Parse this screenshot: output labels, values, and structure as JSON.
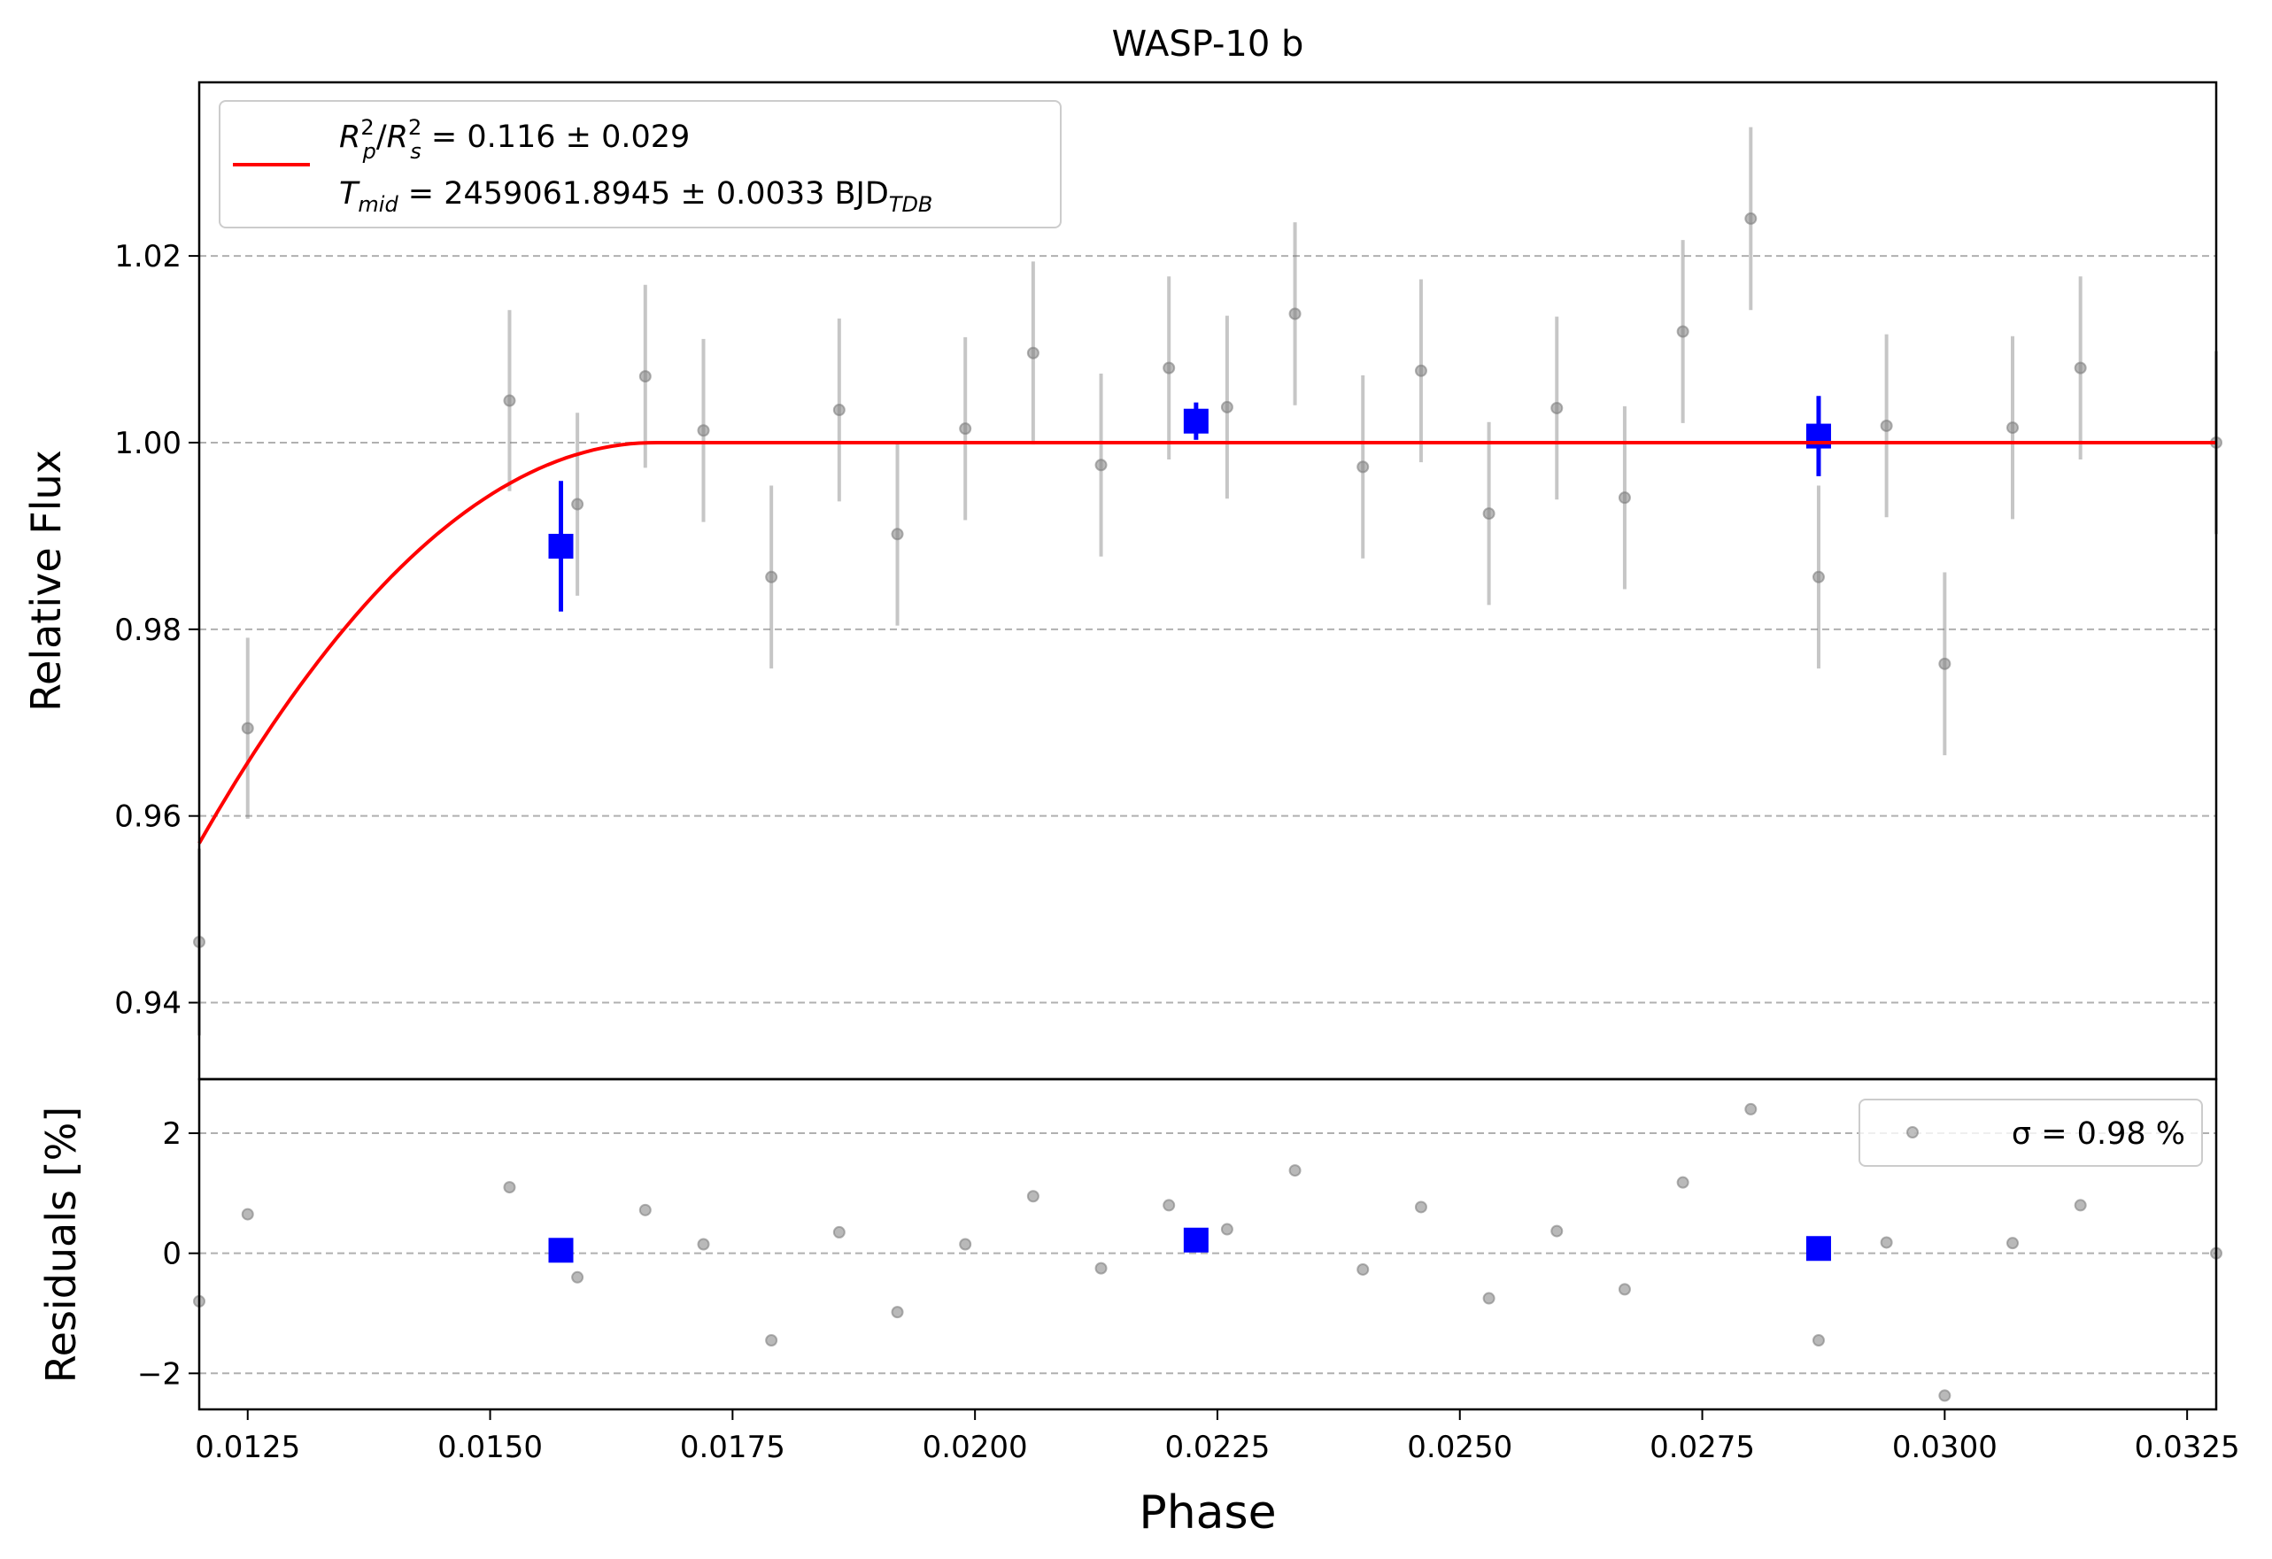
{
  "chart_data": [
    {
      "type": "scatter",
      "title": "WASP-10 b",
      "xlabel": "",
      "ylabel": "Relative Flux",
      "xlim": [
        0.012,
        0.0328
      ],
      "ylim": [
        0.9318,
        1.0386
      ],
      "yticks": [
        0.94,
        0.96,
        0.98,
        1.0,
        1.02
      ],
      "ytick_labels": [
        "0.94",
        "0.96",
        "0.98",
        "1.00",
        "1.02"
      ],
      "grid": "y-dashed",
      "legend": {
        "placement": "top-left",
        "line1": "R_p^2/R_s^2 = 0.116 ± 0.029",
        "line2": "T_mid = 2459061.8945 ± 0.0033 BJD_TDB"
      },
      "model_color": "#ff0000",
      "model": {
        "ingress_start": 0.0105,
        "ingress_end": 0.0167,
        "depth": 0.0747,
        "baseline": 1.0
      },
      "data_color": "#808080",
      "data": {
        "x": [
          0.012,
          0.0125,
          0.0152,
          0.0159,
          0.0166,
          0.0172,
          0.0179,
          0.0186,
          0.0192,
          0.0199,
          0.0206,
          0.0213,
          0.022,
          0.0226,
          0.0233,
          0.024,
          0.0246,
          0.0253,
          0.026,
          0.0267,
          0.0273,
          0.028,
          0.0287,
          0.0294,
          0.03,
          0.0307,
          0.0314,
          0.0328
        ],
        "y": [
          0.9465,
          0.9694,
          1.0045,
          0.9934,
          1.0071,
          1.0013,
          0.9856,
          1.0035,
          0.9902,
          1.0015,
          1.0096,
          0.9976,
          1.008,
          1.0038,
          1.0138,
          0.9974,
          1.0077,
          0.9924,
          1.0037,
          0.9941,
          1.0119,
          1.024,
          0.9856,
          1.0018,
          0.9763,
          1.0016,
          1.008,
          1.0
        ],
        "err": [
          0.01,
          0.0097,
          0.0097,
          0.0098,
          0.0098,
          0.0098,
          0.0098,
          0.0098,
          0.0098,
          0.0098,
          0.0098,
          0.0098,
          0.0098,
          0.0098,
          0.0098,
          0.0098,
          0.0098,
          0.0098,
          0.0098,
          0.0098,
          0.0098,
          0.0098,
          0.0098,
          0.0098,
          0.0098,
          0.0098,
          0.0098,
          0.0098
        ]
      },
      "binned_color": "#0000ff",
      "binned": {
        "x": [
          0.01573,
          0.02228,
          0.0287
        ],
        "y": [
          0.9889,
          1.0023,
          1.0007
        ],
        "err": [
          0.007,
          0.002,
          0.0043
        ]
      }
    },
    {
      "type": "scatter",
      "title": "",
      "xlabel": "Phase",
      "ylabel": "Residuals [%]",
      "xlim": [
        0.012,
        0.0328
      ],
      "ylim": [
        -2.6,
        2.9
      ],
      "xticks": [
        0.0125,
        0.015,
        0.0175,
        0.02,
        0.0225,
        0.025,
        0.0275,
        0.03,
        0.0325
      ],
      "xtick_labels": [
        "0.0125",
        "0.0150",
        "0.0175",
        "0.0200",
        "0.0225",
        "0.0250",
        "0.0275",
        "0.0300",
        "0.0325"
      ],
      "yticks": [
        -2,
        0,
        2
      ],
      "ytick_labels": [
        "−2",
        "0",
        "2"
      ],
      "grid": "y-dashed",
      "legend": {
        "placement": "top-right",
        "text": "σ = 0.98 %"
      },
      "residuals": {
        "x": [
          0.012,
          0.0125,
          0.0152,
          0.0159,
          0.0166,
          0.0172,
          0.0179,
          0.0186,
          0.0192,
          0.0199,
          0.0206,
          0.0213,
          0.022,
          0.0226,
          0.0233,
          0.024,
          0.0246,
          0.0253,
          0.026,
          0.0267,
          0.0273,
          0.028,
          0.0287,
          0.0294,
          0.03,
          0.0307,
          0.0314,
          0.0328
        ],
        "y": [
          -0.8,
          0.65,
          1.1,
          -0.4,
          0.72,
          0.15,
          -1.45,
          0.35,
          -0.98,
          0.15,
          0.95,
          -0.25,
          0.8,
          0.4,
          1.38,
          -0.27,
          0.77,
          -0.75,
          0.37,
          -0.6,
          1.18,
          2.4,
          -1.45,
          0.18,
          -2.37,
          0.17,
          0.8,
          0.0
        ]
      },
      "binned": {
        "x": [
          0.01573,
          0.02228,
          0.0287
        ],
        "y": [
          0.05,
          0.22,
          0.08
        ]
      }
    }
  ]
}
